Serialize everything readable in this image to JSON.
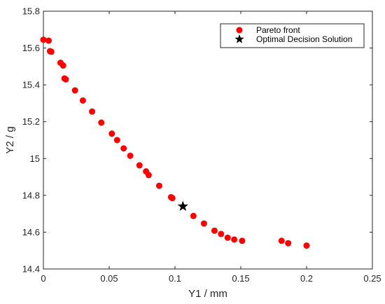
{
  "chart_data": {
    "type": "scatter",
    "title": "",
    "xlabel": "Y1 / mm",
    "ylabel": "Y2 / g",
    "xlim": [
      0,
      0.25
    ],
    "ylim": [
      14.4,
      15.8
    ],
    "x_ticks": [
      0,
      0.05,
      0.1,
      0.15,
      0.2,
      0.25
    ],
    "x_tick_labels": [
      "0",
      "0.05",
      "0.1",
      "0.15",
      "0.2",
      "0.25"
    ],
    "y_ticks": [
      14.4,
      14.6,
      14.8,
      15,
      15.2,
      15.4,
      15.6,
      15.8
    ],
    "y_tick_labels": [
      "14.4",
      "14.6",
      "14.8",
      "15",
      "15.2",
      "15.4",
      "15.6",
      "15.8"
    ],
    "grid": false,
    "legend_position": "top-right",
    "colors": {
      "pareto": "#ff0000",
      "optimal": "#000000"
    },
    "series": [
      {
        "name": "Pareto front",
        "marker": "circle",
        "points": [
          [
            0.0,
            15.645
          ],
          [
            0.004,
            15.64
          ],
          [
            0.005,
            15.583
          ],
          [
            0.006,
            15.58
          ],
          [
            0.013,
            15.52
          ],
          [
            0.015,
            15.505
          ],
          [
            0.016,
            15.435
          ],
          [
            0.017,
            15.43
          ],
          [
            0.024,
            15.37
          ],
          [
            0.03,
            15.315
          ],
          [
            0.037,
            15.255
          ],
          [
            0.044,
            15.195
          ],
          [
            0.052,
            15.135
          ],
          [
            0.056,
            15.1
          ],
          [
            0.061,
            15.055
          ],
          [
            0.066,
            15.015
          ],
          [
            0.073,
            14.963
          ],
          [
            0.078,
            14.93
          ],
          [
            0.08,
            14.91
          ],
          [
            0.088,
            14.852
          ],
          [
            0.097,
            14.79
          ],
          [
            0.098,
            14.785
          ],
          [
            0.114,
            14.688
          ],
          [
            0.122,
            14.647
          ],
          [
            0.13,
            14.608
          ],
          [
            0.135,
            14.59
          ],
          [
            0.14,
            14.57
          ],
          [
            0.145,
            14.56
          ],
          [
            0.151,
            14.553
          ],
          [
            0.181,
            14.553
          ],
          [
            0.186,
            14.54
          ],
          [
            0.2,
            14.527
          ]
        ]
      },
      {
        "name": "Optimal Decision Solution",
        "marker": "star",
        "points": [
          [
            0.106,
            14.74
          ]
        ]
      }
    ]
  }
}
